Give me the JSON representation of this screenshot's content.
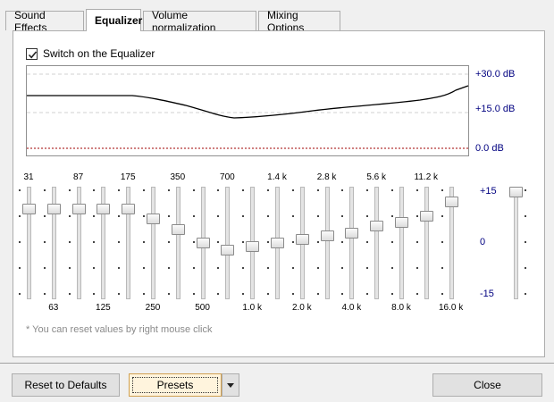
{
  "tabs": [
    {
      "label": "Sound Effects",
      "active": false
    },
    {
      "label": "Equalizer",
      "active": true
    },
    {
      "label": "Volume normalization",
      "active": false
    },
    {
      "label": "Mixing Options",
      "active": false
    }
  ],
  "equalizer": {
    "switch_label": "Switch on the Equalizer",
    "switch_checked": true,
    "graph_labels": [
      "+30.0 dB",
      "+15.0 dB",
      "0.0 dB"
    ],
    "bands": [
      {
        "freq": "31",
        "value": 10
      },
      {
        "freq": "63",
        "value": 10
      },
      {
        "freq": "87",
        "value": 10
      },
      {
        "freq": "125",
        "value": 10
      },
      {
        "freq": "175",
        "value": 10
      },
      {
        "freq": "250",
        "value": 7
      },
      {
        "freq": "350",
        "value": 4
      },
      {
        "freq": "500",
        "value": 0
      },
      {
        "freq": "700",
        "value": -2
      },
      {
        "freq": "1.0 k",
        "value": -1
      },
      {
        "freq": "1.4 k",
        "value": 0
      },
      {
        "freq": "2.0 k",
        "value": 1
      },
      {
        "freq": "2.8 k",
        "value": 2
      },
      {
        "freq": "4.0 k",
        "value": 3
      },
      {
        "freq": "5.6 k",
        "value": 5
      },
      {
        "freq": "8.0 k",
        "value": 6
      },
      {
        "freq": "11.2 k",
        "value": 8
      },
      {
        "freq": "16.0 k",
        "value": 12
      }
    ],
    "preamp_value": 15,
    "scale_labels": {
      "top": "+15",
      "mid": "0",
      "bottom": "-15"
    },
    "note": "* You can reset values by right mouse click"
  },
  "buttons": {
    "reset": "Reset to Defaults",
    "presets": "Presets",
    "close": "Close"
  }
}
